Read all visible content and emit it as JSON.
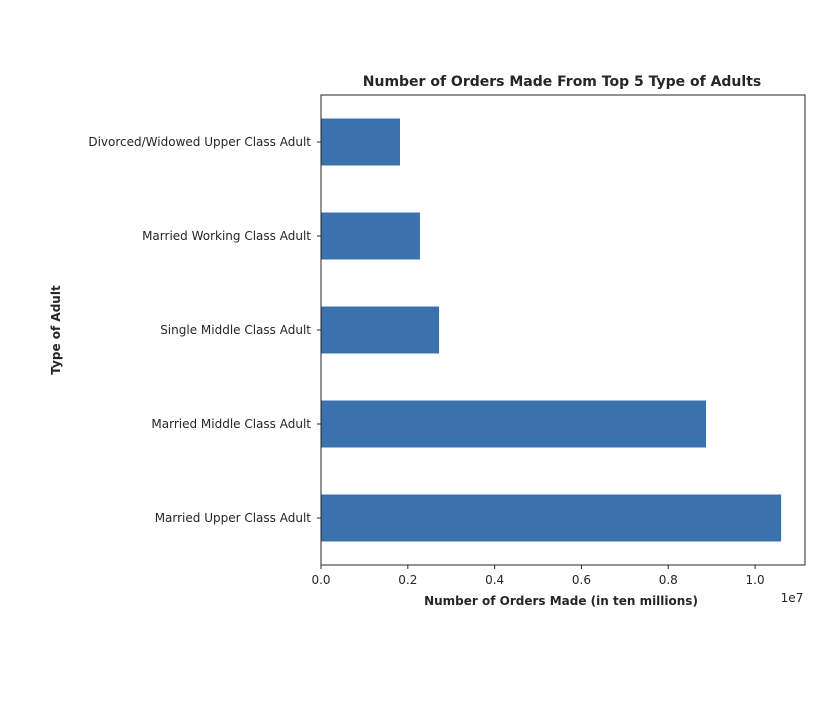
{
  "chart_data": {
    "type": "bar",
    "orientation": "horizontal",
    "title": "Number of Orders Made From Top 5 Type of Adults",
    "xlabel": "Number of Orders Made (in ten millions)",
    "ylabel": "Type of Adult",
    "x_offset_label": "1e7",
    "categories": [
      "Married Upper Class Adult",
      "Married Middle Class Adult",
      "Single Middle Class Adult",
      "Married Working Class Adult",
      "Divorced/Widowed Upper Class Adult"
    ],
    "values": [
      10600000,
      8870000,
      2720000,
      2280000,
      1820000
    ],
    "xlim": [
      0,
      11150000
    ],
    "xticks": [
      0,
      2000000,
      4000000,
      6000000,
      8000000,
      10000000
    ],
    "xtick_labels": [
      "0.0",
      "0.2",
      "0.4",
      "0.6",
      "0.8",
      "1.0"
    ],
    "bar_color": "#3a72ae",
    "grid": false,
    "legend": false
  }
}
